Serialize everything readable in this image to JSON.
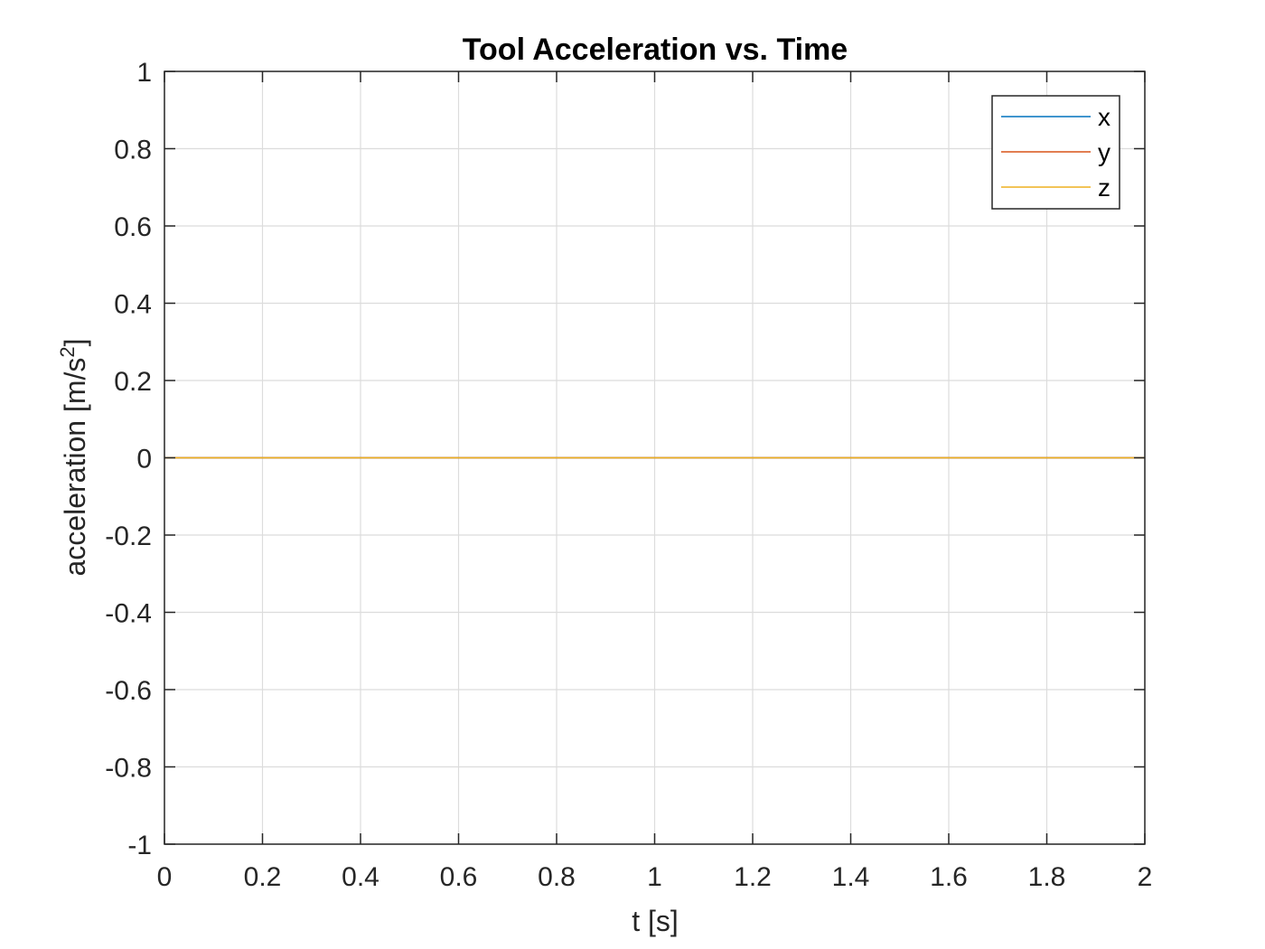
{
  "chart_data": {
    "type": "line",
    "title": "Tool Acceleration vs. Time",
    "xlabel": "t [s]",
    "ylabel": {
      "base": "acceleration [m/s",
      "superscript": "2",
      "suffix": "]"
    },
    "xlim": [
      0,
      2
    ],
    "ylim": [
      -1,
      1
    ],
    "xticks": [
      "0",
      "0.2",
      "0.4",
      "0.6",
      "0.8",
      "1",
      "1.2",
      "1.4",
      "1.6",
      "1.8",
      "2"
    ],
    "xtick_values": [
      0,
      0.2,
      0.4,
      0.6,
      0.8,
      1,
      1.2,
      1.4,
      1.6,
      1.8,
      2
    ],
    "yticks": [
      "1",
      "0.8",
      "0.6",
      "0.4",
      "0.2",
      "0",
      "-0.2",
      "-0.4",
      "-0.6",
      "-0.8",
      "-1"
    ],
    "ytick_values": [
      1,
      0.8,
      0.6,
      0.4,
      0.2,
      0,
      -0.2,
      -0.4,
      -0.6,
      -0.8,
      -1
    ],
    "grid": true,
    "legend_position": "top-right",
    "series": [
      {
        "name": "x",
        "color": "#0072BD",
        "x": [
          0,
          2
        ],
        "y": [
          0,
          0
        ]
      },
      {
        "name": "y",
        "color": "#D95319",
        "x": [
          0,
          2
        ],
        "y": [
          0,
          0
        ]
      },
      {
        "name": "z",
        "color": "#EDB120",
        "x": [
          0,
          2
        ],
        "y": [
          0,
          0
        ]
      }
    ]
  }
}
